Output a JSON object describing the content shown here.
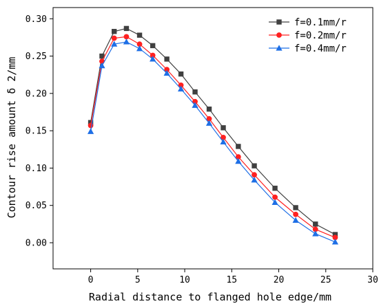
{
  "chart_data": {
    "type": "line",
    "xlabel": "Radial distance to flanged hole edge/mm",
    "ylabel": "Contour rise amount δ 2/mm",
    "xlim": [
      -4,
      30
    ],
    "ylim": [
      -0.035,
      0.315
    ],
    "xticks": [
      0,
      5,
      10,
      15,
      20,
      25,
      30
    ],
    "yticks": [
      0.0,
      0.05,
      0.1,
      0.15,
      0.2,
      0.25,
      0.3
    ],
    "x": [
      0,
      1.2,
      2.5,
      3.8,
      5.2,
      6.6,
      8.1,
      9.6,
      11.1,
      12.6,
      14.1,
      15.7,
      17.4,
      19.6,
      21.8,
      23.9,
      26.0
    ],
    "series": [
      {
        "name": "f=0.1mm/r",
        "color": "#404040",
        "marker": "square",
        "values": [
          0.161,
          0.25,
          0.283,
          0.287,
          0.278,
          0.264,
          0.246,
          0.226,
          0.202,
          0.179,
          0.154,
          0.129,
          0.103,
          0.073,
          0.047,
          0.025,
          0.011
        ]
      },
      {
        "name": "f=0.2mm/r",
        "color": "#ff2020",
        "marker": "circle",
        "values": [
          0.157,
          0.243,
          0.274,
          0.276,
          0.266,
          0.251,
          0.232,
          0.211,
          0.189,
          0.166,
          0.141,
          0.115,
          0.091,
          0.061,
          0.038,
          0.018,
          0.007
        ]
      },
      {
        "name": "f=0.4mm/r",
        "color": "#1e6fe6",
        "marker": "triangle",
        "values": [
          0.149,
          0.237,
          0.266,
          0.269,
          0.26,
          0.246,
          0.227,
          0.206,
          0.184,
          0.16,
          0.135,
          0.109,
          0.084,
          0.054,
          0.03,
          0.012,
          0.001
        ]
      }
    ],
    "legend_position": "top-right",
    "grid": false
  }
}
